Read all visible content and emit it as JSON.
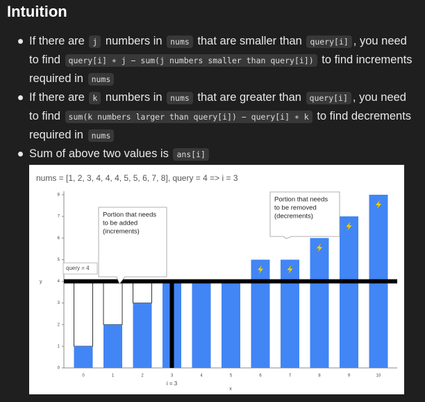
{
  "header": {
    "title": "Intuition"
  },
  "bullets": [
    {
      "segments": [
        "If there are ",
        {
          "code": "j"
        },
        " numbers in ",
        {
          "code": "nums"
        },
        " that are smaller than ",
        {
          "code": "query[i]"
        },
        ", you need to find ",
        {
          "code": "query[i] ∗ j − sum(j numbers smaller than query[i])"
        },
        " to find increments required in ",
        {
          "code": "nums"
        }
      ]
    },
    {
      "segments": [
        "If there are ",
        {
          "code": "k"
        },
        " numbers in ",
        {
          "code": "nums"
        },
        " that are greater than ",
        {
          "code": "query[i]"
        },
        ", you need to find ",
        {
          "code": "sum(k numbers larger than query[i]) − query[i] ∗ k"
        },
        " to find decrements required in ",
        {
          "code": "nums"
        }
      ]
    },
    {
      "segments": [
        "Sum of above two values is ",
        {
          "code": "ans[i]"
        }
      ]
    }
  ],
  "chart_data": {
    "type": "bar",
    "title": "nums = [1, 2, 3, 4, 4, 4, 5, 5, 6, 7, 8], query = 4 => i = 3",
    "x_label": "x",
    "y_label": "y",
    "categories": [
      0,
      1,
      2,
      3,
      4,
      5,
      6,
      7,
      8,
      9,
      10
    ],
    "values": [
      1,
      2,
      3,
      4,
      4,
      4,
      5,
      5,
      6,
      7,
      8
    ],
    "color": "#4285f4",
    "ylim": [
      0,
      8
    ],
    "yticks": [
      0,
      1,
      2,
      3,
      4,
      5,
      6,
      7,
      8
    ],
    "reference_line": {
      "value": 4,
      "label": "query = 4"
    },
    "index_line": {
      "category": 3,
      "label": "i = 3"
    },
    "annotations": [
      {
        "lines": [
          "Portion that needs",
          "to be added",
          "(increments)"
        ]
      },
      {
        "lines": [
          "Portion that needs",
          "to be removed",
          "(decrements)"
        ]
      }
    ]
  }
}
